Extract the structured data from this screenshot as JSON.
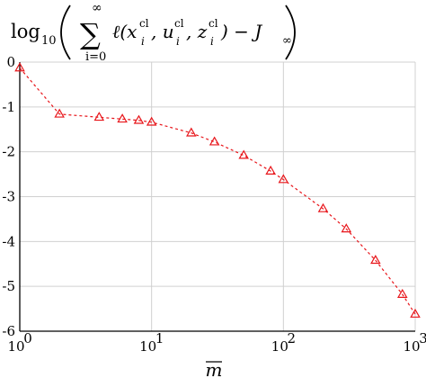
{
  "chart_data": {
    "type": "line",
    "title": {
      "prefix": "log",
      "prefix_sub": "10",
      "sum_upper": "∞",
      "sum_lower": "i=0",
      "body": "ℓ(x",
      "sup_cl": "cl",
      "sub_i": "i",
      "sep1": ", u",
      "sep2": ", z",
      "close": ") − J",
      "j_sub": "∞"
    },
    "xlabel": "m",
    "xscale": "log",
    "xlim": [
      1,
      1000
    ],
    "ylim": [
      -6,
      0
    ],
    "x_ticks": [
      {
        "value": 1,
        "base": "10",
        "exp": "0"
      },
      {
        "value": 10,
        "base": "10",
        "exp": "1"
      },
      {
        "value": 100,
        "base": "10",
        "exp": "2"
      },
      {
        "value": 1000,
        "base": "10",
        "exp": "3"
      }
    ],
    "y_ticks": [
      {
        "value": 0,
        "label": "0"
      },
      {
        "value": -1,
        "label": "-1"
      },
      {
        "value": -2,
        "label": "-2"
      },
      {
        "value": -3,
        "label": "-3"
      },
      {
        "value": -4,
        "label": "-4"
      },
      {
        "value": -5,
        "label": "-5"
      },
      {
        "value": -6,
        "label": "-6"
      }
    ],
    "grid": true,
    "series": [
      {
        "color": "#e8161b",
        "line_style": "dashed",
        "marker": "triangle-open",
        "points": [
          {
            "x": 1,
            "y": -0.13
          },
          {
            "x": 2,
            "y": -1.16
          },
          {
            "x": 4,
            "y": -1.23
          },
          {
            "x": 6,
            "y": -1.27
          },
          {
            "x": 8,
            "y": -1.3
          },
          {
            "x": 10,
            "y": -1.34
          },
          {
            "x": 20,
            "y": -1.58
          },
          {
            "x": 30,
            "y": -1.78
          },
          {
            "x": 50,
            "y": -2.08
          },
          {
            "x": 80,
            "y": -2.43
          },
          {
            "x": 100,
            "y": -2.62
          },
          {
            "x": 200,
            "y": -3.27
          },
          {
            "x": 300,
            "y": -3.72
          },
          {
            "x": 500,
            "y": -4.42
          },
          {
            "x": 800,
            "y": -5.18
          },
          {
            "x": 1000,
            "y": -5.62
          }
        ]
      }
    ]
  }
}
